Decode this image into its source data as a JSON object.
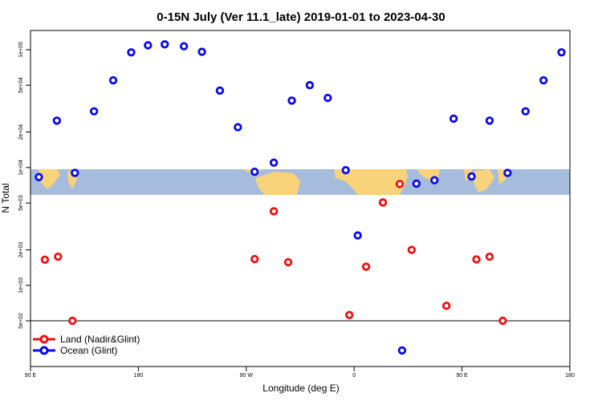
{
  "chart_data": {
    "type": "scatter",
    "title": "0-15N July (Ver 11.1_late)   2019-01-01 to 2023-04-30",
    "xlabel": "Longitude (deg E)",
    "ylabel": "N Total",
    "x_ticks": [
      {
        "value": 90,
        "label": "90 E"
      },
      {
        "value": 180,
        "label": "180"
      },
      {
        "value": 270,
        "label": "90 W"
      },
      {
        "value": 360,
        "label": "0"
      },
      {
        "value": 450,
        "label": "90 E"
      },
      {
        "value": 540,
        "label": "180"
      }
    ],
    "y_ticks": [
      {
        "value": 500,
        "label": "5e+02"
      },
      {
        "value": 1000,
        "label": "1e+03"
      },
      {
        "value": 2000,
        "label": "2e+03"
      },
      {
        "value": 5000,
        "label": "5e+03"
      },
      {
        "value": 10000,
        "label": "1e+04"
      },
      {
        "value": 20000,
        "label": "2e+04"
      },
      {
        "value": 50000,
        "label": "5e+04"
      },
      {
        "value": 100000,
        "label": "1e+05"
      }
    ],
    "xlim": [
      90,
      540
    ],
    "y_scale": "log",
    "legend_position": "bottom-left",
    "map_band": "latitude 0-15N land/ocean strip",
    "series": [
      {
        "name": "Land (Nadir&Glint)",
        "color": "#ee1111",
        "points": [
          {
            "x": 102,
            "y": 1650
          },
          {
            "x": 113,
            "y": 1750
          },
          {
            "x": 125,
            "y": 500
          },
          {
            "x": 277,
            "y": 1670
          },
          {
            "x": 293,
            "y": 4250
          },
          {
            "x": 305,
            "y": 1570
          },
          {
            "x": 356,
            "y": 560
          },
          {
            "x": 370,
            "y": 1440
          },
          {
            "x": 384,
            "y": 5050
          },
          {
            "x": 398,
            "y": 7250
          },
          {
            "x": 408,
            "y": 2000
          },
          {
            "x": 437,
            "y": 670
          },
          {
            "x": 462,
            "y": 1660
          },
          {
            "x": 473,
            "y": 1750
          },
          {
            "x": 484,
            "y": 500
          }
        ]
      },
      {
        "name": "Ocean (Glint)",
        "color": "#0a0ae6",
        "points": [
          {
            "x": 97,
            "y": 8300
          },
          {
            "x": 112,
            "y": 25000
          },
          {
            "x": 127,
            "y": 9000
          },
          {
            "x": 143,
            "y": 30000
          },
          {
            "x": 159,
            "y": 55000
          },
          {
            "x": 174,
            "y": 95000
          },
          {
            "x": 188,
            "y": 109000
          },
          {
            "x": 202,
            "y": 111000
          },
          {
            "x": 218,
            "y": 107000
          },
          {
            "x": 233,
            "y": 96000
          },
          {
            "x": 248,
            "y": 45000
          },
          {
            "x": 263,
            "y": 22000
          },
          {
            "x": 277,
            "y": 9200
          },
          {
            "x": 293,
            "y": 11000
          },
          {
            "x": 308,
            "y": 37000
          },
          {
            "x": 323,
            "y": 50000
          },
          {
            "x": 338,
            "y": 39000
          },
          {
            "x": 353,
            "y": 9500
          },
          {
            "x": 363,
            "y": 2650
          },
          {
            "x": 400,
            "y": 280
          },
          {
            "x": 412,
            "y": 7300
          },
          {
            "x": 427,
            "y": 7800
          },
          {
            "x": 443,
            "y": 26000
          },
          {
            "x": 458,
            "y": 8400
          },
          {
            "x": 473,
            "y": 25000
          },
          {
            "x": 488,
            "y": 9000
          },
          {
            "x": 503,
            "y": 30000
          },
          {
            "x": 518,
            "y": 55000
          },
          {
            "x": 533,
            "y": 95000
          }
        ]
      }
    ]
  }
}
